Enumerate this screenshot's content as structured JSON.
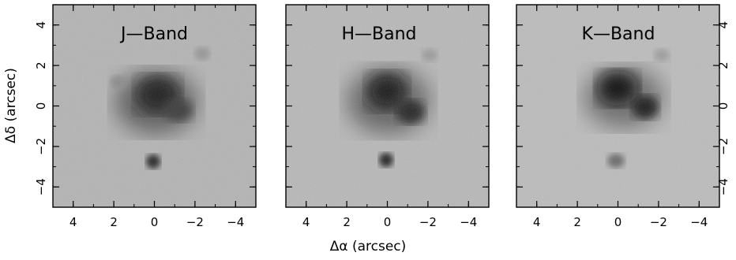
{
  "figure": {
    "panels": [
      {
        "title": "J—Band"
      },
      {
        "title": "H—Band"
      },
      {
        "title": "K—Band"
      }
    ],
    "x_axis_label": "Δα  (arcsec)",
    "y_axis_label": "Δδ  (arcsec)",
    "x_ticks": [
      "4",
      "2",
      "0",
      "−2",
      "−4"
    ],
    "y_ticks": [
      "4",
      "2",
      "0",
      "−2",
      "−4"
    ],
    "x_range": [
      5,
      -5
    ],
    "y_range": [
      -5,
      5
    ],
    "image_colormap": "grayscale"
  }
}
